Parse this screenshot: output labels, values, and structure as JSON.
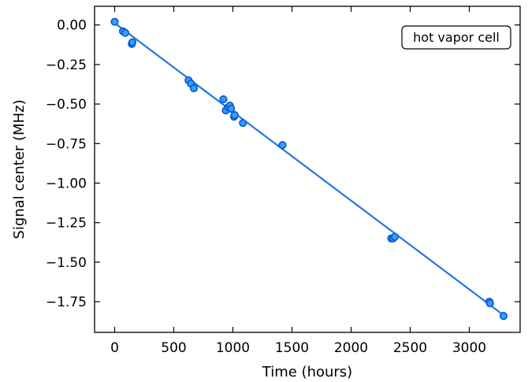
{
  "chart_data": {
    "type": "scatter",
    "xlabel": "Time (hours)",
    "ylabel": "Signal center (MHz)",
    "xlim": [
      -170,
      3430
    ],
    "ylim": [
      -1.944,
      0.118
    ],
    "x_ticks": [
      0,
      500,
      1000,
      1500,
      2000,
      2500,
      3000
    ],
    "x_tick_labels": [
      "0",
      "500",
      "1000",
      "1500",
      "2000",
      "2500",
      "3000"
    ],
    "y_ticks": [
      0.0,
      -0.25,
      -0.5,
      -0.75,
      -1.0,
      -1.25,
      -1.5,
      -1.75
    ],
    "y_tick_labels": [
      "0.00",
      "−0.25",
      "−0.50",
      "−0.75",
      "−1.00",
      "−1.25",
      "−1.50",
      "−1.75"
    ],
    "grid": false,
    "annotation": "hot vapor cell",
    "color": "#1f77e6",
    "series": [
      {
        "points": [
          [
            0,
            0.02
          ],
          [
            70,
            -0.04
          ],
          [
            90,
            -0.05
          ],
          [
            145,
            -0.12
          ],
          [
            150,
            -0.11
          ],
          [
            625,
            -0.35
          ],
          [
            645,
            -0.37
          ],
          [
            670,
            -0.4
          ],
          [
            920,
            -0.47
          ],
          [
            940,
            -0.54
          ],
          [
            960,
            -0.52
          ],
          [
            975,
            -0.51
          ],
          [
            985,
            -0.53
          ],
          [
            1010,
            -0.58
          ],
          [
            1015,
            -0.57
          ],
          [
            1085,
            -0.62
          ],
          [
            1420,
            -0.76
          ],
          [
            2340,
            -1.35
          ],
          [
            2355,
            -1.35
          ],
          [
            2370,
            -1.34
          ],
          [
            3170,
            -1.75
          ],
          [
            3175,
            -1.76
          ],
          [
            3290,
            -1.84
          ]
        ]
      }
    ],
    "fit_line": {
      "x": [
        0,
        3290
      ],
      "y": [
        0.012,
        -1.835
      ]
    }
  }
}
